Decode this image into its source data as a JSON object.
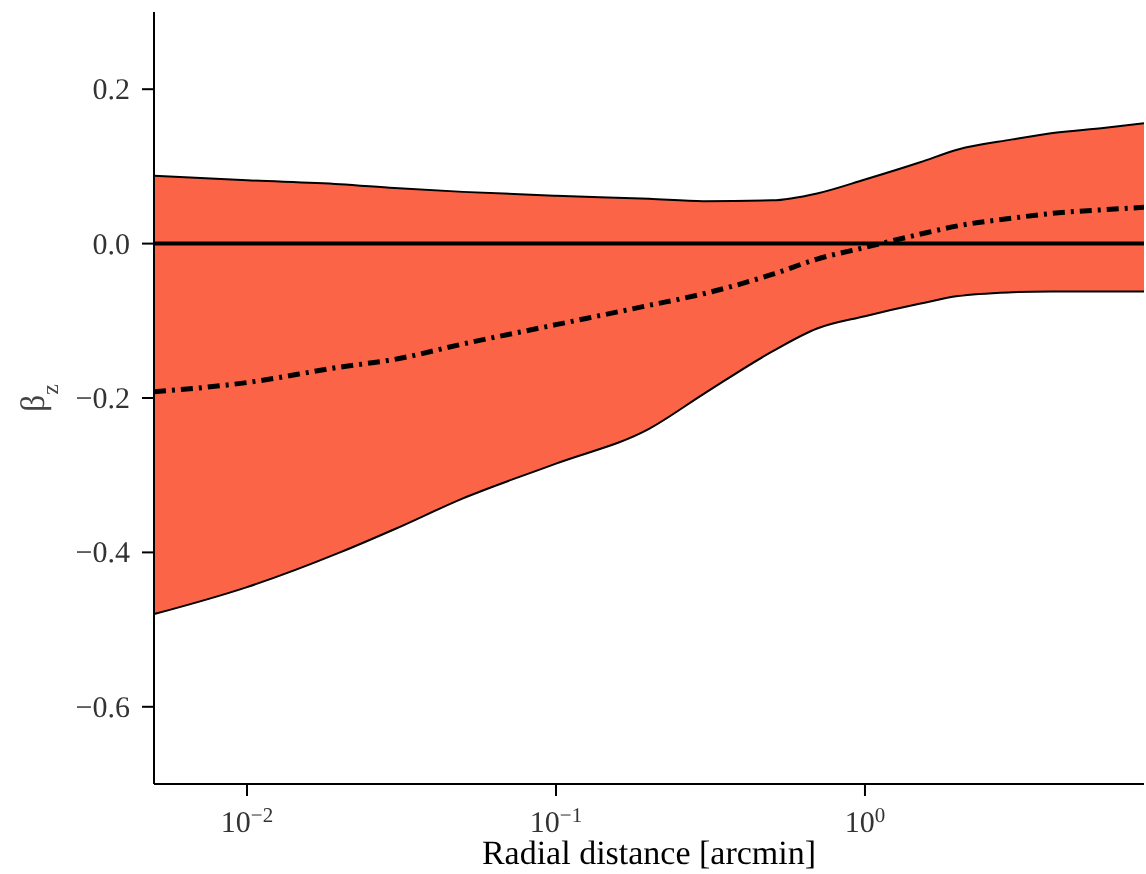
{
  "chart_data": {
    "type": "line",
    "xlabel": "Radial distance [arcmin]",
    "ylabel": "β$_{z}$",
    "log": "x",
    "xlim": [
      0.005,
      8
    ],
    "xticks": [
      {
        "value": 0.01,
        "label": "10$^{−2}$"
      },
      {
        "value": 0.1,
        "label": "10$^{−1}$"
      },
      {
        "value": 1,
        "label": "10$^{0}$"
      }
    ],
    "ylim": [
      -0.7,
      0.3
    ],
    "yticks": [
      {
        "value": -0.6,
        "label": "−0.6"
      },
      {
        "value": -0.4,
        "label": "−0.4"
      },
      {
        "value": -0.2,
        "label": "−0.2"
      },
      {
        "value": 0,
        "label": "0.0"
      },
      {
        "value": 0.2,
        "label": "0.2"
      }
    ],
    "grid": false,
    "legend": false,
    "marker": "none",
    "x": [
      0.005,
      0.01,
      0.02,
      0.03,
      0.05,
      0.1,
      0.2,
      0.3,
      0.5,
      0.7,
      1,
      1.5,
      2,
      3,
      4,
      6,
      8
    ],
    "series": [
      {
        "color": "#000000",
        "line_style": "dashed",
        "values": [
          -0.192,
          -0.18,
          -0.16,
          -0.15,
          -0.13,
          -0.105,
          -0.08,
          -0.065,
          -0.04,
          -0.02,
          -0.005,
          0.012,
          0.023,
          0.033,
          0.039,
          0.044,
          0.047
        ],
        "lower": [
          -0.48,
          -0.445,
          -0.4,
          -0.37,
          -0.33,
          -0.285,
          -0.24,
          -0.195,
          -0.14,
          -0.11,
          -0.094,
          -0.078,
          -0.068,
          -0.063,
          -0.062,
          -0.062,
          -0.062
        ],
        "upper": [
          0.088,
          0.082,
          0.077,
          0.072,
          0.067,
          0.062,
          0.058,
          0.055,
          0.056,
          0.065,
          0.083,
          0.105,
          0.122,
          0.135,
          0.143,
          0.15,
          0.156
        ]
      },
      {
        "color": "#000000",
        "line_style": "solid",
        "values": [
          0.088,
          0.082,
          0.077,
          0.072,
          0.067,
          0.062,
          0.058,
          0.055,
          0.056,
          0.065,
          0.083,
          0.105,
          0.122,
          0.135,
          0.143,
          0.15,
          0.156
        ]
      },
      {
        "color": "#000000",
        "line_style": "solid",
        "values": [
          -0.48,
          -0.445,
          -0.4,
          -0.37,
          -0.33,
          -0.285,
          -0.24,
          -0.195,
          -0.14,
          -0.11,
          -0.094,
          -0.078,
          -0.068,
          -0.063,
          -0.062,
          -0.062,
          -0.062
        ]
      }
    ],
    "ref_lines": [
      {
        "axis": "y",
        "value": 0,
        "color": "#000000",
        "line_style": "solid"
      }
    ]
  }
}
